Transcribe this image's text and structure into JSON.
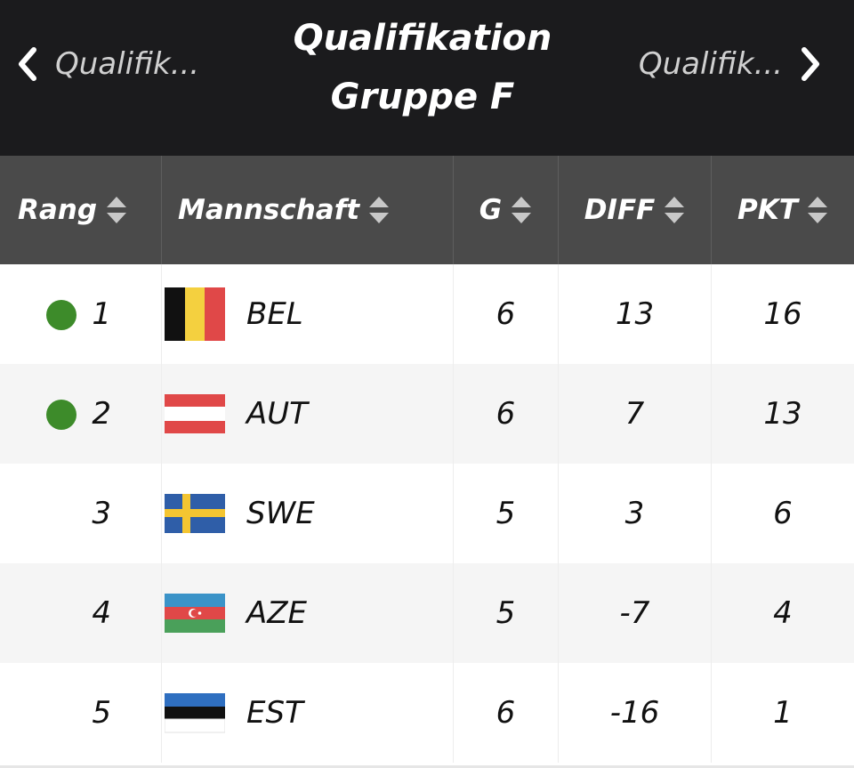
{
  "nav": {
    "prev_label": "Qualifik...",
    "next_label": "Qualifik...",
    "title_line1": "Qualifikation",
    "title_line2": "Gruppe F"
  },
  "table": {
    "headers": {
      "rank": "Rang",
      "team": "Mannschaft",
      "games": "G",
      "diff": "DIFF",
      "points": "PKT"
    },
    "rows": [
      {
        "rank": "1",
        "team": "BEL",
        "games": "6",
        "diff": "13",
        "points": "16",
        "qualified": true,
        "flag": "belgium-flag"
      },
      {
        "rank": "2",
        "team": "AUT",
        "games": "6",
        "diff": "7",
        "points": "13",
        "qualified": true,
        "flag": "austria-flag"
      },
      {
        "rank": "3",
        "team": "SWE",
        "games": "5",
        "diff": "3",
        "points": "6",
        "qualified": false,
        "flag": "sweden-flag"
      },
      {
        "rank": "4",
        "team": "AZE",
        "games": "5",
        "diff": "-7",
        "points": "4",
        "qualified": false,
        "flag": "azerbaijan-flag"
      },
      {
        "rank": "5",
        "team": "EST",
        "games": "6",
        "diff": "-16",
        "points": "1",
        "qualified": false,
        "flag": "estonia-flag"
      }
    ]
  },
  "colors": {
    "topbar_bg": "#1b1b1d",
    "header_bg": "#4a4a4a",
    "qualified_dot": "#3d8b2a"
  }
}
